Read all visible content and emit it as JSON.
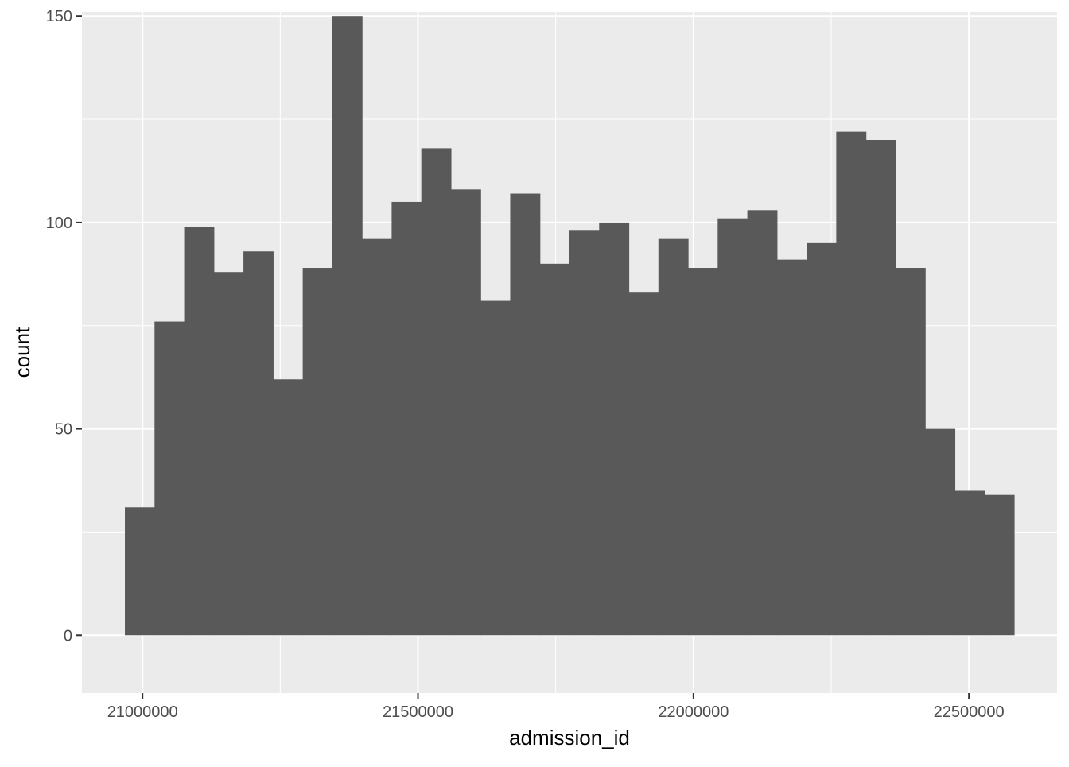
{
  "chart_data": {
    "type": "bar",
    "subtype": "histogram",
    "xlabel": "admission_id",
    "ylabel": "count",
    "xlim": [
      20890000,
      22660000
    ],
    "ylim": [
      -14,
      151
    ],
    "x_ticks": [
      {
        "value": 21000000,
        "label": "21000000"
      },
      {
        "value": 21500000,
        "label": "21500000"
      },
      {
        "value": 22000000,
        "label": "22000000"
      },
      {
        "value": 22500000,
        "label": "22500000"
      }
    ],
    "y_ticks": [
      {
        "value": 0,
        "label": "0"
      },
      {
        "value": 50,
        "label": "50"
      },
      {
        "value": 100,
        "label": "100"
      },
      {
        "value": 150,
        "label": "150"
      }
    ],
    "bin_width": 53800,
    "bin_starts": [
      20968000,
      21021800,
      21075600,
      21129400,
      21183200,
      21237000,
      21290800,
      21344600,
      21398400,
      21452200,
      21506000,
      21559800,
      21613600,
      21667400,
      21721200,
      21775000,
      21828800,
      21882600,
      21936400,
      21990200,
      22044000,
      22097800,
      22151600,
      22205400,
      22259200,
      22313000,
      22366800,
      22420600,
      22474400,
      22528200
    ],
    "values": [
      31,
      76,
      99,
      88,
      93,
      62,
      89,
      150,
      96,
      105,
      118,
      108,
      81,
      107,
      90,
      98,
      100,
      83,
      96,
      89,
      101,
      103,
      91,
      95,
      122,
      120,
      89,
      50,
      35,
      34
    ],
    "grid": true,
    "legend": "none",
    "colors": {
      "panel_background": "#ebebeb",
      "grid_major": "#ffffff",
      "bar_fill": "#595959",
      "tick_mark": "#333333"
    }
  }
}
